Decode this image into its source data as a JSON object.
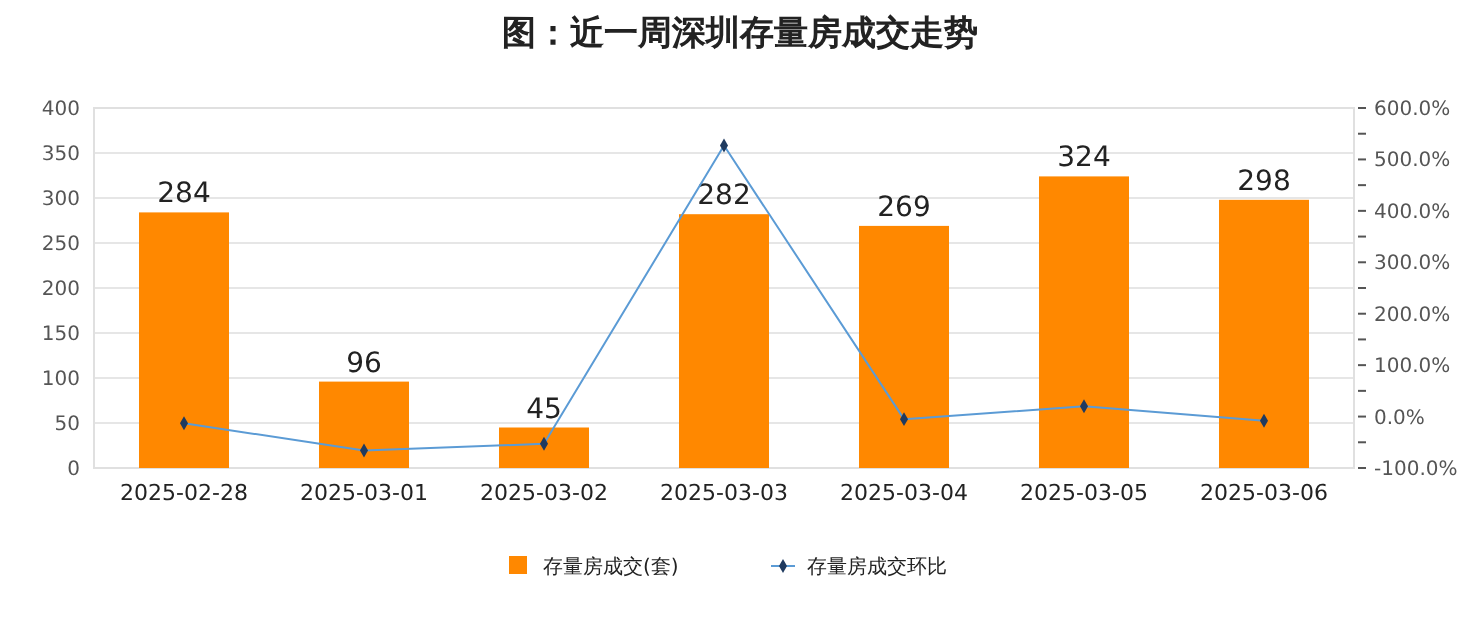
{
  "chart_data": {
    "type": "bar",
    "title": "图：近一周深圳存量房成交走势",
    "categories": [
      "2025-02-28",
      "2025-03-01",
      "2025-03-02",
      "2025-03-03",
      "2025-03-04",
      "2025-03-05",
      "2025-03-06"
    ],
    "series": [
      {
        "name": "存量房成交(套)",
        "color": "#ff8800",
        "values": [
          284,
          96,
          45,
          282,
          269,
          324,
          298
        ],
        "data_labels": true
      },
      {
        "name": "存量房成交环比",
        "type": "line",
        "axis": "y2",
        "color": "#5b9bd5",
        "marker": "diamond",
        "values": [
          -13,
          -66,
          -53,
          527,
          -5,
          20,
          -8
        ]
      }
    ],
    "ylim": [
      0,
      400
    ],
    "yticks": [
      0,
      50,
      100,
      150,
      200,
      250,
      300,
      350,
      400
    ],
    "y2lim": [
      -100,
      600
    ],
    "y2ticks": [
      {
        "value": -100,
        "label": "-100.0%"
      },
      {
        "value": -50,
        "label": null
      },
      {
        "value": 0,
        "label": "0.0%"
      },
      {
        "value": 50,
        "label": null
      },
      {
        "value": 100,
        "label": "100.0%"
      },
      {
        "value": 150,
        "label": null
      },
      {
        "value": 200,
        "label": "200.0%"
      },
      {
        "value": 250,
        "label": null
      },
      {
        "value": 300,
        "label": "300.0%"
      },
      {
        "value": 350,
        "label": null
      },
      {
        "value": 400,
        "label": "400.0%"
      },
      {
        "value": 450,
        "label": null
      },
      {
        "value": 500,
        "label": "500.0%"
      },
      {
        "value": 550,
        "label": null
      },
      {
        "value": 600,
        "label": "600.0%"
      }
    ],
    "grid": "y",
    "legend": "bottom"
  }
}
